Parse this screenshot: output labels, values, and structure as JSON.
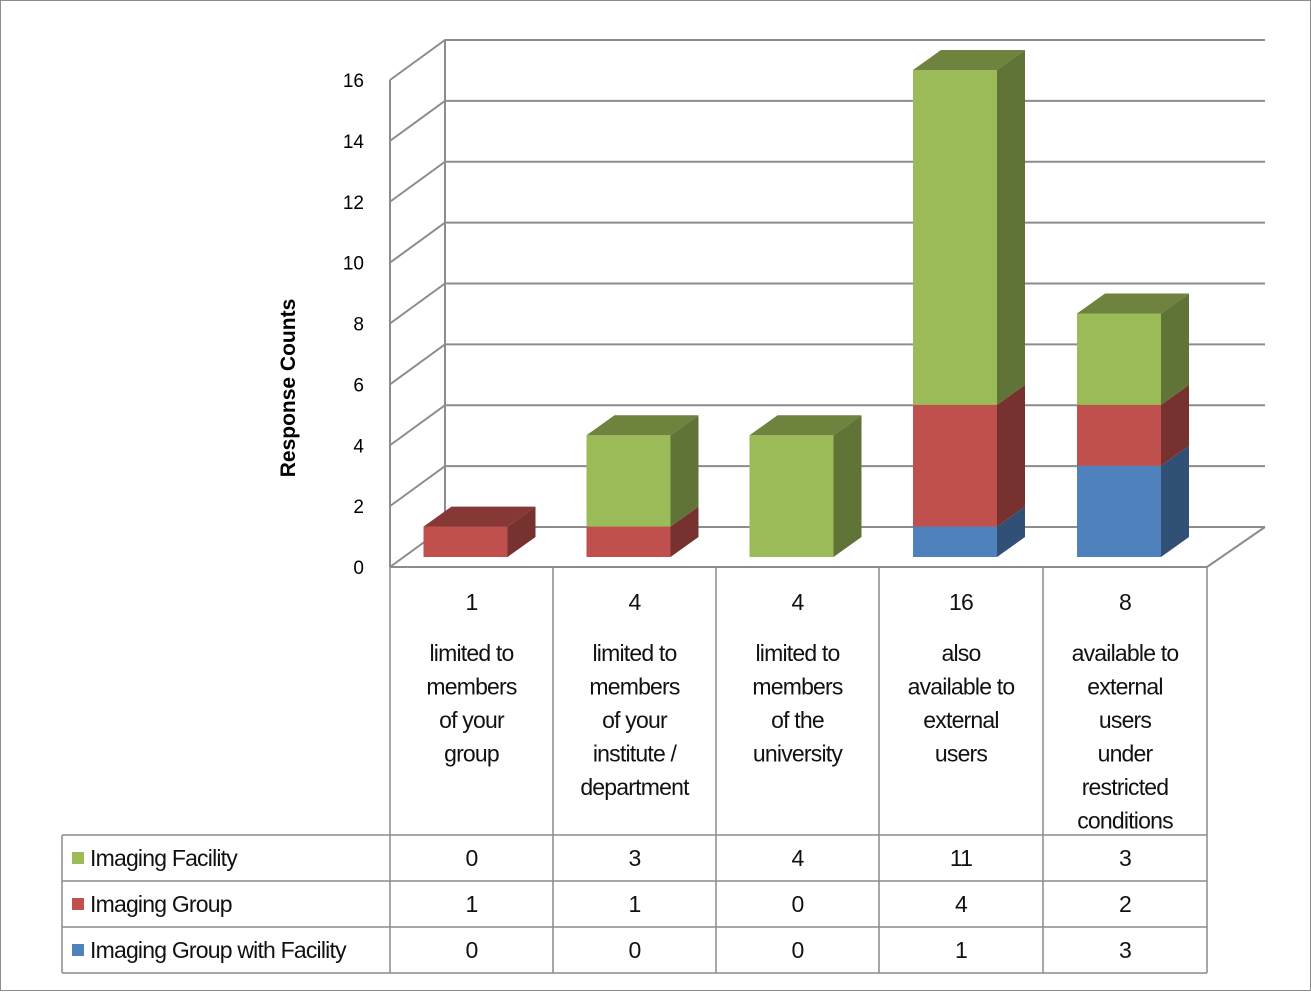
{
  "chart_data": {
    "type": "bar",
    "stacked": true,
    "three_d": true,
    "ylabel": "Response Counts",
    "ylim": [
      0,
      16
    ],
    "yticks": [
      "0",
      "2",
      "4",
      "6",
      "8",
      "10",
      "12",
      "14",
      "16"
    ],
    "grid": true,
    "legend": "data-table-left",
    "categories": [
      [
        "limited to",
        "members",
        "of your",
        "group"
      ],
      [
        "limited to",
        "members",
        "of your",
        "institute /",
        "department"
      ],
      [
        "limited to",
        "members",
        "of the",
        "university"
      ],
      [
        "also",
        "available to",
        "external",
        "users"
      ],
      [
        "available to",
        "external",
        "users",
        "under",
        "restricted",
        "conditions"
      ]
    ],
    "totals": [
      "1",
      "4",
      "4",
      "16",
      "8"
    ],
    "series": [
      {
        "name": "Imaging Group with Facility",
        "color": "#4f81bd",
        "values": [
          0,
          0,
          0,
          1,
          3
        ]
      },
      {
        "name": "Imaging Group",
        "color": "#c0504d",
        "values": [
          1,
          1,
          0,
          4,
          2
        ]
      },
      {
        "name": "Imaging Facility",
        "color": "#9bbb59",
        "values": [
          0,
          3,
          4,
          11,
          3
        ]
      }
    ],
    "table_order": [
      "Imaging Facility",
      "Imaging Group",
      "Imaging Group with Facility"
    ]
  }
}
